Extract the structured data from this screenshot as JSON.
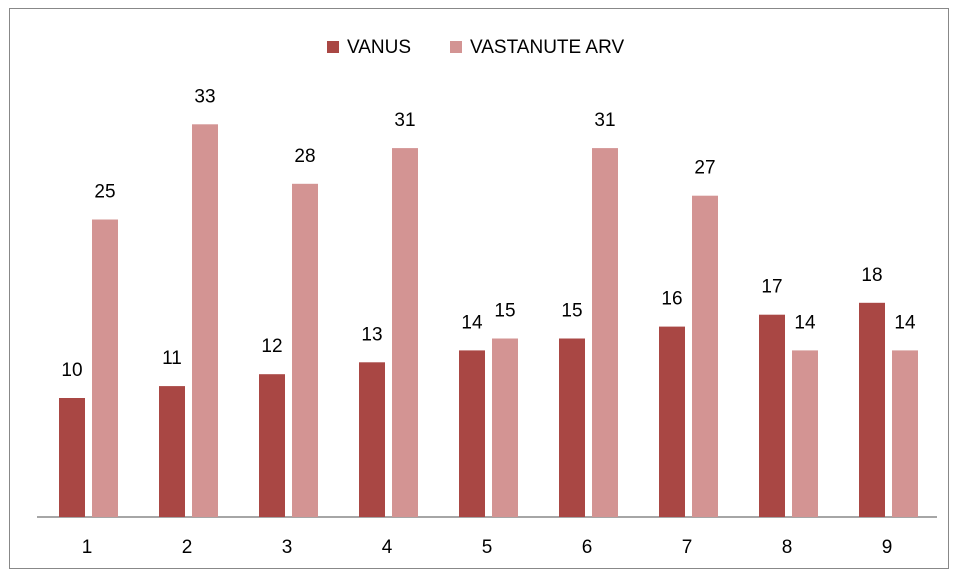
{
  "chart_data": {
    "type": "bar",
    "categories": [
      "1",
      "2",
      "3",
      "4",
      "5",
      "6",
      "7",
      "8",
      "9"
    ],
    "series": [
      {
        "name": "VANUS",
        "color": "#a94744",
        "values": [
          10,
          11,
          12,
          13,
          14,
          15,
          16,
          17,
          18
        ]
      },
      {
        "name": "VASTANUTE ARV",
        "color": "#d39493",
        "values": [
          25,
          33,
          28,
          31,
          15,
          31,
          27,
          14,
          14
        ]
      }
    ],
    "legend": "top"
  }
}
